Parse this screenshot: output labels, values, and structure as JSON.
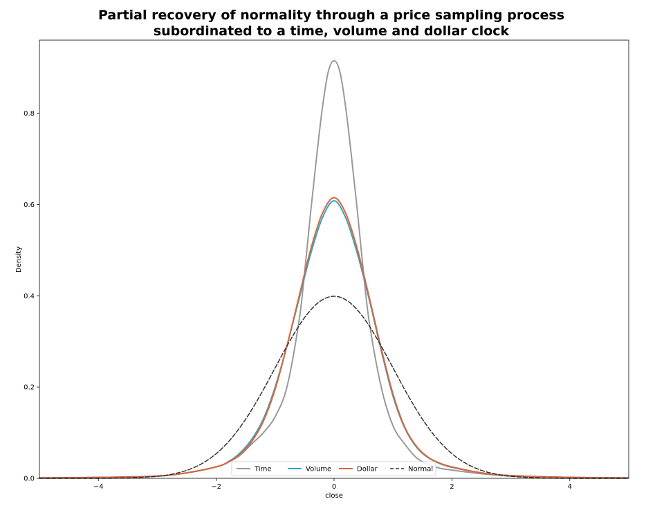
{
  "chart_data": {
    "type": "line",
    "title_line1": "Partial recovery of normality through a price sampling process",
    "title_line2": "subordinated to a time, volume and dollar clock",
    "xlabel": "close",
    "ylabel": "Density",
    "xlim": [
      -5,
      5
    ],
    "ylim": [
      0,
      0.96
    ],
    "xticks": [
      -4,
      -2,
      0,
      2,
      4
    ],
    "xtick_labels": [
      "−4",
      "−2",
      "0",
      "2",
      "4"
    ],
    "yticks": [
      0.0,
      0.2,
      0.4,
      0.6,
      0.8
    ],
    "ytick_labels": [
      "0.0",
      "0.2",
      "0.4",
      "0.6",
      "0.8"
    ],
    "grid": false,
    "legend_position": "bottom-center",
    "series": [
      {
        "name": "Time",
        "color": "#999999",
        "dash": "solid",
        "x": [
          -5,
          -4,
          -3,
          -2.5,
          -2,
          -1.8,
          -1.6,
          -1.4,
          -1.2,
          -1,
          -0.8,
          -0.6,
          -0.5,
          -0.4,
          -0.3,
          -0.2,
          -0.1,
          0,
          0.1,
          0.2,
          0.3,
          0.4,
          0.5,
          0.6,
          0.8,
          1,
          1.2,
          1.4,
          1.6,
          1.8,
          2,
          2.5,
          3,
          4,
          5
        ],
        "y": [
          0.001,
          0.002,
          0.005,
          0.012,
          0.025,
          0.035,
          0.05,
          0.075,
          0.1,
          0.135,
          0.2,
          0.34,
          0.45,
          0.58,
          0.7,
          0.81,
          0.89,
          0.915,
          0.89,
          0.81,
          0.7,
          0.58,
          0.45,
          0.34,
          0.2,
          0.115,
          0.075,
          0.045,
          0.03,
          0.022,
          0.018,
          0.01,
          0.005,
          0.002,
          0.001
        ]
      },
      {
        "name": "Volume",
        "color": "#2aa9c7",
        "dash": "solid",
        "x": [
          -5,
          -4,
          -3,
          -2.5,
          -2,
          -1.8,
          -1.6,
          -1.4,
          -1.2,
          -1,
          -0.8,
          -0.6,
          -0.4,
          -0.2,
          0,
          0.2,
          0.4,
          0.6,
          0.8,
          1,
          1.2,
          1.4,
          1.6,
          1.8,
          2,
          2.5,
          3,
          4,
          5
        ],
        "y": [
          0.001,
          0.002,
          0.005,
          0.012,
          0.025,
          0.036,
          0.055,
          0.085,
          0.13,
          0.2,
          0.29,
          0.39,
          0.49,
          0.57,
          0.608,
          0.57,
          0.49,
          0.39,
          0.28,
          0.18,
          0.11,
          0.068,
          0.045,
          0.032,
          0.024,
          0.012,
          0.006,
          0.002,
          0.001
        ]
      },
      {
        "name": "Dollar",
        "color": "#e0643a",
        "dash": "solid",
        "x": [
          -5,
          -4,
          -3,
          -2.5,
          -2,
          -1.8,
          -1.6,
          -1.4,
          -1.2,
          -1,
          -0.8,
          -0.6,
          -0.4,
          -0.2,
          0,
          0.2,
          0.4,
          0.6,
          0.8,
          1,
          1.2,
          1.4,
          1.6,
          1.8,
          2,
          2.5,
          3,
          4,
          5
        ],
        "y": [
          0.001,
          0.002,
          0.005,
          0.012,
          0.025,
          0.035,
          0.052,
          0.08,
          0.125,
          0.195,
          0.29,
          0.395,
          0.5,
          0.58,
          0.615,
          0.58,
          0.5,
          0.395,
          0.285,
          0.185,
          0.112,
          0.07,
          0.046,
          0.033,
          0.025,
          0.012,
          0.006,
          0.002,
          0.001
        ]
      },
      {
        "name": "Normal",
        "color": "#333333",
        "dash": "dashed",
        "x": [
          -5,
          -4.5,
          -4,
          -3.5,
          -3,
          -2.75,
          -2.5,
          -2.25,
          -2,
          -1.75,
          -1.5,
          -1.25,
          -1,
          -0.75,
          -0.5,
          -0.25,
          0,
          0.25,
          0.5,
          0.75,
          1,
          1.25,
          1.5,
          1.75,
          2,
          2.25,
          2.5,
          2.75,
          3,
          3.5,
          4,
          4.5,
          5
        ],
        "y": [
          0.0,
          0.0,
          0.0001,
          0.0009,
          0.0044,
          0.0091,
          0.0175,
          0.0317,
          0.054,
          0.0863,
          0.1295,
          0.1826,
          0.242,
          0.3011,
          0.3521,
          0.3867,
          0.3989,
          0.3867,
          0.3521,
          0.3011,
          0.242,
          0.1826,
          0.1295,
          0.0863,
          0.054,
          0.0317,
          0.0175,
          0.0091,
          0.0044,
          0.0009,
          0.0001,
          0.0,
          0.0
        ]
      }
    ]
  }
}
